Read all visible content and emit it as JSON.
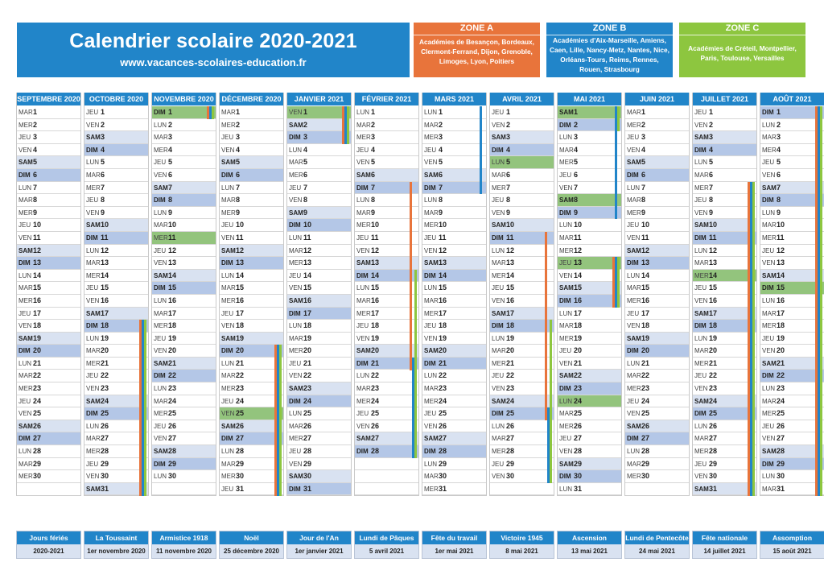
{
  "header": {
    "title": "Calendrier scolaire 2020-2021",
    "website": "www.vacances-scolaires-education.fr"
  },
  "zones": [
    {
      "id": "A",
      "label": "ZONE A",
      "color": "#e8743b",
      "academies": "Académies de Besançon, Bordeaux, Clermont-Ferrand, Dijon, Grenoble, Limoges, Lyon, Poitiers"
    },
    {
      "id": "B",
      "label": "ZONE B",
      "color": "#2185c9",
      "academies": "Académies d'Aix-Marseille, Amiens, Caen, Lille, Nancy-Metz, Nantes, Nice, Orléans-Tours, Reims, Rennes, Rouen, Strasbourg"
    },
    {
      "id": "C",
      "label": "ZONE C",
      "color": "#8dc63f",
      "academies": "Académies de Créteil, Montpellier, Paris, Toulouse, Versailles"
    }
  ],
  "colors": {
    "header_blue": "#2185c9",
    "saturday": "#d9e2f1",
    "sunday": "#b4c7e7",
    "public_holiday": "#93c47d"
  },
  "months": [
    {
      "label": "SEPTEMBRE 2020",
      "first_weekday": "MAR",
      "days": 30,
      "holidays": [],
      "vacations": []
    },
    {
      "label": "OCTOBRE 2020",
      "first_weekday": "JEU",
      "days": 31,
      "holidays": [],
      "vacations": [
        {
          "zone": "A",
          "from": 18,
          "to": 31
        },
        {
          "zone": "B",
          "from": 18,
          "to": 31
        },
        {
          "zone": "C",
          "from": 18,
          "to": 31
        }
      ]
    },
    {
      "label": "NOVEMBRE 2020",
      "first_weekday": "DIM",
      "days": 30,
      "holidays": [
        1,
        11
      ],
      "vacations": [
        {
          "zone": "A",
          "from": 1,
          "to": 1
        },
        {
          "zone": "B",
          "from": 1,
          "to": 1
        },
        {
          "zone": "C",
          "from": 1,
          "to": 1
        }
      ]
    },
    {
      "label": "DÉCEMBRE 2020",
      "first_weekday": "MAR",
      "days": 31,
      "holidays": [
        25
      ],
      "vacations": [
        {
          "zone": "A",
          "from": 20,
          "to": 31
        },
        {
          "zone": "B",
          "from": 20,
          "to": 31
        },
        {
          "zone": "C",
          "from": 20,
          "to": 31
        }
      ]
    },
    {
      "label": "JANVIER 2021",
      "first_weekday": "VEN",
      "days": 31,
      "holidays": [
        1
      ],
      "vacations": [
        {
          "zone": "A",
          "from": 1,
          "to": 3
        },
        {
          "zone": "B",
          "from": 1,
          "to": 3
        },
        {
          "zone": "C",
          "from": 1,
          "to": 3
        }
      ]
    },
    {
      "label": "FÉVRIER 2021",
      "first_weekday": "LUN",
      "days": 28,
      "holidays": [],
      "vacations": [
        {
          "zone": "A",
          "from": 7,
          "to": 21
        },
        {
          "zone": "B",
          "from": 21,
          "to": 28
        },
        {
          "zone": "C",
          "from": 14,
          "to": 28
        }
      ]
    },
    {
      "label": "MARS 2021",
      "first_weekday": "LUN",
      "days": 31,
      "holidays": [],
      "vacations": [
        {
          "zone": "B",
          "from": 1,
          "to": 7
        }
      ]
    },
    {
      "label": "AVRIL 2021",
      "first_weekday": "JEU",
      "days": 30,
      "holidays": [
        5
      ],
      "vacations": [
        {
          "zone": "A",
          "from": 11,
          "to": 25
        },
        {
          "zone": "B",
          "from": 25,
          "to": 30
        },
        {
          "zone": "C",
          "from": 18,
          "to": 30
        }
      ]
    },
    {
      "label": "MAI 2021",
      "first_weekday": "SAM",
      "days": 31,
      "holidays": [
        1,
        8,
        13,
        24
      ],
      "vacations": [
        {
          "zone": "A",
          "from": 13,
          "to": 16
        },
        {
          "zone": "B",
          "from": 1,
          "to": 9
        },
        {
          "zone": "B",
          "from": 13,
          "to": 16
        },
        {
          "zone": "C",
          "from": 1,
          "to": 2
        },
        {
          "zone": "C",
          "from": 13,
          "to": 16
        }
      ]
    },
    {
      "label": "JUIN 2021",
      "first_weekday": "MAR",
      "days": 30,
      "holidays": [],
      "vacations": []
    },
    {
      "label": "JUILLET 2021",
      "first_weekday": "JEU",
      "days": 31,
      "holidays": [
        14
      ],
      "vacations": [
        {
          "zone": "A",
          "from": 7,
          "to": 31
        },
        {
          "zone": "B",
          "from": 7,
          "to": 31
        },
        {
          "zone": "C",
          "from": 7,
          "to": 31
        }
      ]
    },
    {
      "label": "AOÛT 2021",
      "first_weekday": "DIM",
      "days": 31,
      "holidays": [
        15
      ],
      "vacations": [
        {
          "zone": "A",
          "from": 1,
          "to": 31
        },
        {
          "zone": "B",
          "from": 1,
          "to": 31
        },
        {
          "zone": "C",
          "from": 1,
          "to": 31
        }
      ]
    }
  ],
  "weekdays": [
    "LUN",
    "MAR",
    "MER",
    "JEU",
    "VEN",
    "SAM",
    "DIM"
  ],
  "public_holidays": [
    {
      "name": "Jours fériés",
      "date": "2020-2021"
    },
    {
      "name": "La Toussaint",
      "date": "1er novembre 2020"
    },
    {
      "name": "Armistice 1918",
      "date": "11 novembre 2020"
    },
    {
      "name": "Noël",
      "date": "25 décembre 2020"
    },
    {
      "name": "Jour de l'An",
      "date": "1er janvier 2021"
    },
    {
      "name": "Lundi de Pâques",
      "date": "5 avril 2021"
    },
    {
      "name": "Fête du travail",
      "date": "1er mai 2021"
    },
    {
      "name": "Victoire 1945",
      "date": "8 mai 2021"
    },
    {
      "name": "Ascension",
      "date": "13 mai 2021"
    },
    {
      "name": "Lundi de Pentecôte",
      "date": "24 mai 2021"
    },
    {
      "name": "Fête nationale",
      "date": "14 juillet 2021"
    },
    {
      "name": "Assomption",
      "date": "15 août 2021"
    }
  ]
}
